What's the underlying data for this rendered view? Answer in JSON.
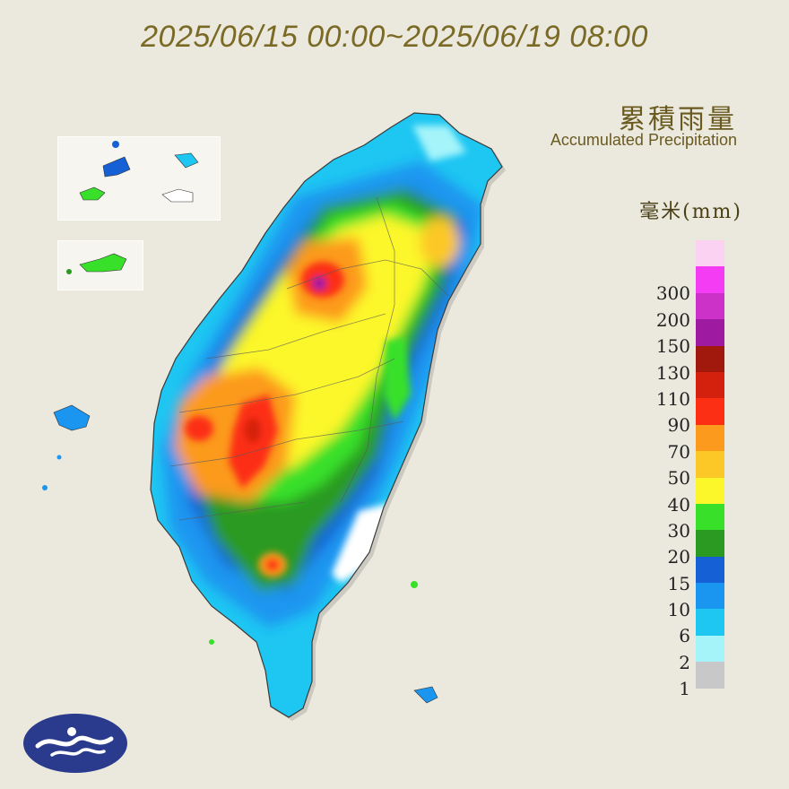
{
  "title": "2025/06/15 00:00~2025/06/19 08:00",
  "legend": {
    "title_zh": "累積雨量",
    "title_en": "Accumulated Precipitation",
    "unit": "毫米(mm)",
    "levels": [
      {
        "label": "",
        "color": "#fcd2f2"
      },
      {
        "label": "300",
        "color": "#f43cf4"
      },
      {
        "label": "200",
        "color": "#cc32c8"
      },
      {
        "label": "150",
        "color": "#9e1aa0"
      },
      {
        "label": "130",
        "color": "#a0190c"
      },
      {
        "label": "110",
        "color": "#d4210e"
      },
      {
        "label": "90",
        "color": "#fc2e14"
      },
      {
        "label": "70",
        "color": "#fc9a1e"
      },
      {
        "label": "50",
        "color": "#fcc828"
      },
      {
        "label": "40",
        "color": "#fcf72a"
      },
      {
        "label": "30",
        "color": "#38e02a"
      },
      {
        "label": "20",
        "color": "#2a9a22"
      },
      {
        "label": "15",
        "color": "#1460d4"
      },
      {
        "label": "10",
        "color": "#1a96f0"
      },
      {
        "label": "6",
        "color": "#1ec6f2"
      },
      {
        "label": "2",
        "color": "#a4f4fa"
      },
      {
        "label": "1",
        "color": "#c8c8c8"
      }
    ]
  }
}
